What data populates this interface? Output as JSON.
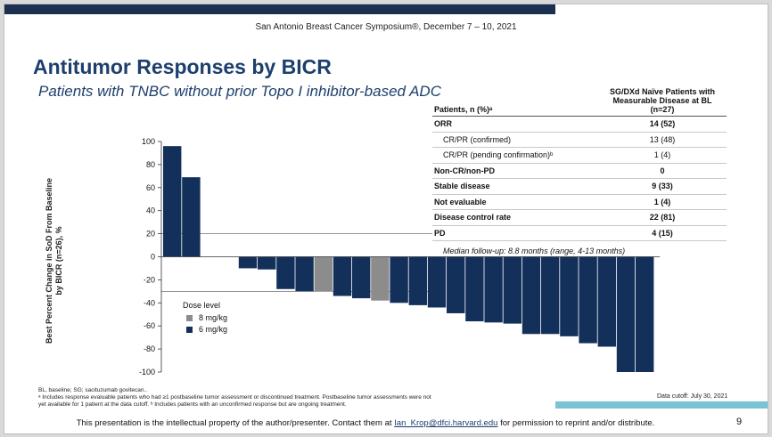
{
  "header": {
    "symposium": "San Antonio Breast Cancer Symposium®, December 7 – 10, 2021"
  },
  "title": "Antitumor Responses by BICR",
  "subtitle": "Patients with TNBC without prior Topo I inhibitor-based ADC",
  "table": {
    "col_header_line1": "SG/DXd Naïve Patients with",
    "col_header_line2": "Measurable Disease at BL",
    "col_header_line3": "(n=27)",
    "row_header": "Patients, n (%)ᵃ",
    "rows": [
      {
        "label": "ORR",
        "value": "14 (52)"
      },
      {
        "label": "CR/PR (confirmed)",
        "value": "13 (48)"
      },
      {
        "label": "CR/PR (pending confirmation)ᵇ",
        "value": "1 (4)"
      },
      {
        "label": "Non-CR/non-PD",
        "value": "0"
      },
      {
        "label": "Stable disease",
        "value": "9 (33)"
      },
      {
        "label": "Not evaluable",
        "value": "1 (4)"
      },
      {
        "label": "Disease control rate",
        "value": "22 (81)"
      },
      {
        "label": "PD",
        "value": "4 (15)"
      }
    ]
  },
  "median_followup": "Median follow-up: 8.8 months (range, 4-13 months)",
  "chart_data": {
    "type": "bar",
    "ylabel_line1": "Best Percent Change in SoD From Baseline",
    "ylabel_line2": "by BICR (n=26), %",
    "ylim": [
      -100,
      100
    ],
    "yticks": [
      100,
      80,
      60,
      40,
      20,
      0,
      -20,
      -40,
      -60,
      -80,
      -100
    ],
    "reference_lines": [
      20,
      -30
    ],
    "series": [
      {
        "name": "8 mg/kg",
        "color": "#8c8c8c"
      },
      {
        "name": "6 mg/kg",
        "color": "#12305a"
      }
    ],
    "bars": [
      {
        "value": 96,
        "dose": "6 mg/kg"
      },
      {
        "value": 69,
        "dose": "6 mg/kg"
      },
      {
        "value": 0,
        "dose": "6 mg/kg"
      },
      {
        "value": 0,
        "dose": "6 mg/kg"
      },
      {
        "value": -10,
        "dose": "6 mg/kg"
      },
      {
        "value": -11,
        "dose": "6 mg/kg"
      },
      {
        "value": -28,
        "dose": "6 mg/kg"
      },
      {
        "value": -30,
        "dose": "6 mg/kg"
      },
      {
        "value": -30,
        "dose": "8 mg/kg"
      },
      {
        "value": -34,
        "dose": "6 mg/kg"
      },
      {
        "value": -36,
        "dose": "6 mg/kg"
      },
      {
        "value": -38,
        "dose": "8 mg/kg"
      },
      {
        "value": -40,
        "dose": "6 mg/kg"
      },
      {
        "value": -42,
        "dose": "6 mg/kg"
      },
      {
        "value": -44,
        "dose": "6 mg/kg"
      },
      {
        "value": -49,
        "dose": "6 mg/kg"
      },
      {
        "value": -56,
        "dose": "6 mg/kg"
      },
      {
        "value": -57,
        "dose": "6 mg/kg"
      },
      {
        "value": -58,
        "dose": "6 mg/kg"
      },
      {
        "value": -67,
        "dose": "6 mg/kg"
      },
      {
        "value": -67,
        "dose": "6 mg/kg"
      },
      {
        "value": -69,
        "dose": "6 mg/kg"
      },
      {
        "value": -75,
        "dose": "6 mg/kg"
      },
      {
        "value": -78,
        "dose": "6 mg/kg"
      },
      {
        "value": -100,
        "dose": "6 mg/kg"
      },
      {
        "value": -100,
        "dose": "6 mg/kg"
      }
    ]
  },
  "legend": {
    "title": "Dose level",
    "items": [
      {
        "label": "8 mg/kg",
        "color": "#8c8c8c"
      },
      {
        "label": "6 mg/kg",
        "color": "#12305a"
      }
    ]
  },
  "footnotes": {
    "line1": "BL, baseline; SG; sacituzumab govitecan..",
    "line2": "ᵃ Includes response evaluable patients who had ≥1 postbaseline tumor assessment or discontinued treatment. Postbaseline tumor assessments were not",
    "line3": "yet available for 1 patient at the data cutoff. ᵇ Includes patients with an unconfirmed response but are ongoing treatment."
  },
  "data_cutoff": "Data cutoff: July 30, 2021",
  "ip_notice": {
    "prefix": "This presentation is the intellectual property of the author/presenter. Contact them at",
    "email": "Ian_Krop@dfci.harvard.edu",
    "suffix": "for permission to reprint and/or distribute."
  },
  "page_number": "9"
}
